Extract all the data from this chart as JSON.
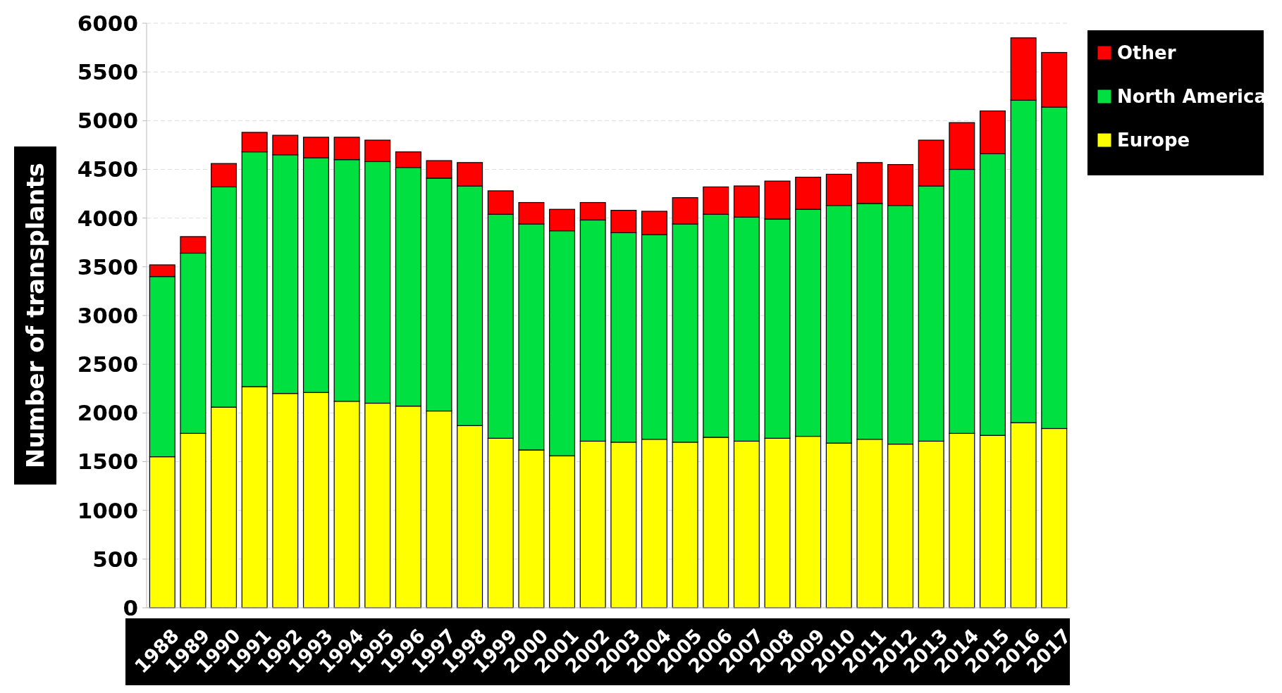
{
  "chart_data": {
    "type": "bar",
    "stacked": true,
    "ylabel": "Number of transplants",
    "categories": [
      "1988",
      "1989",
      "1990",
      "1991",
      "1992",
      "1993",
      "1994",
      "1995",
      "1996",
      "1997",
      "1998",
      "1999",
      "2000",
      "2001",
      "2002",
      "2003",
      "2004",
      "2005",
      "2006",
      "2007",
      "2008",
      "2009",
      "2010",
      "2011",
      "2012",
      "2013",
      "2014",
      "2015",
      "2016",
      "2017"
    ],
    "series": [
      {
        "name": "Europe",
        "color": "#ffff00",
        "values": [
          1550,
          1790,
          2060,
          2270,
          2200,
          2210,
          2120,
          2100,
          2070,
          2020,
          1870,
          1740,
          1620,
          1560,
          1710,
          1700,
          1730,
          1700,
          1750,
          1710,
          1740,
          1760,
          1690,
          1730,
          1680,
          1710,
          1790,
          1770,
          1900,
          1840
        ]
      },
      {
        "name": "North America",
        "color": "#00e040",
        "values": [
          1850,
          1850,
          2260,
          2410,
          2450,
          2410,
          2480,
          2480,
          2450,
          2390,
          2460,
          2300,
          2320,
          2310,
          2270,
          2150,
          2100,
          2240,
          2290,
          2300,
          2250,
          2330,
          2440,
          2420,
          2450,
          2620,
          2710,
          2890,
          3310,
          3300
        ]
      },
      {
        "name": "Other",
        "color": "#ff0000",
        "values": [
          120,
          170,
          240,
          200,
          200,
          210,
          230,
          220,
          160,
          180,
          240,
          240,
          220,
          220,
          180,
          230,
          240,
          270,
          280,
          320,
          390,
          330,
          320,
          420,
          420,
          470,
          480,
          440,
          640,
          560
        ]
      }
    ],
    "ylim": [
      0,
      6000
    ],
    "yticks": [
      0,
      500,
      1000,
      1500,
      2000,
      2500,
      3000,
      3500,
      4000,
      4500,
      5000,
      5500,
      6000
    ],
    "grid": "y",
    "legend": "right"
  }
}
